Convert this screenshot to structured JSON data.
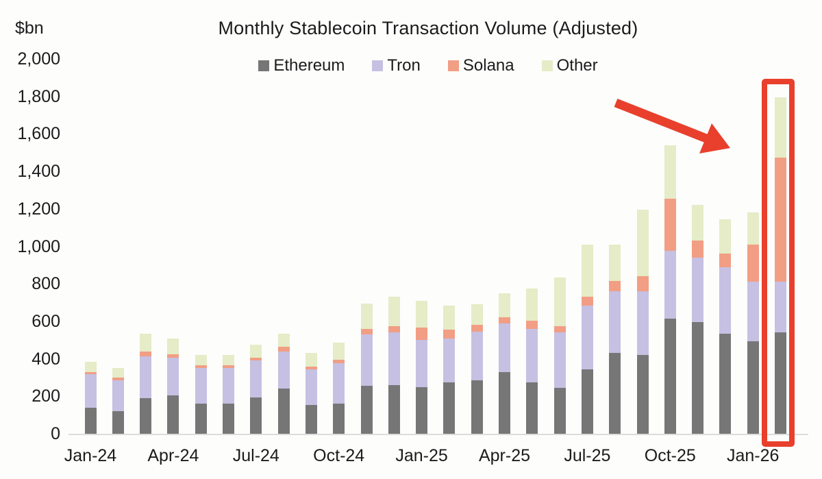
{
  "chart_data": {
    "type": "bar",
    "stacked": true,
    "title": "Monthly Stablecoin Transaction Volume (Adjusted)",
    "ylabel": "$bn",
    "ylim": [
      0,
      2000
    ],
    "ytick_interval": 200,
    "y_ticks": [
      "0",
      "200",
      "400",
      "600",
      "800",
      "1,000",
      "1,200",
      "1,400",
      "1,600",
      "1,800",
      "2,000"
    ],
    "grid": false,
    "legend_position": "top-center",
    "categories": [
      "Jan-24",
      "Feb-24",
      "Mar-24",
      "Apr-24",
      "May-24",
      "Jun-24",
      "Jul-24",
      "Aug-24",
      "Sep-24",
      "Oct-24",
      "Nov-24",
      "Dec-24",
      "Jan-25",
      "Feb-25",
      "Mar-25",
      "Apr-25",
      "May-25",
      "Jun-25",
      "Jul-25",
      "Aug-25",
      "Sep-25",
      "Oct-25",
      "Nov-25",
      "Dec-25",
      "Jan-26",
      "Feb-26"
    ],
    "x_ticks": [
      {
        "label": "Jan-24",
        "index": 0
      },
      {
        "label": "Apr-24",
        "index": 3
      },
      {
        "label": "Jul-24",
        "index": 6
      },
      {
        "label": "Oct-24",
        "index": 9
      },
      {
        "label": "Jan-25",
        "index": 12
      },
      {
        "label": "Apr-25",
        "index": 15
      },
      {
        "label": "Jul-25",
        "index": 18
      },
      {
        "label": "Oct-25",
        "index": 21
      },
      {
        "label": "Jan-26",
        "index": 24
      }
    ],
    "series": [
      {
        "name": "Ethereum",
        "color": "#767676",
        "values": [
          140,
          120,
          190,
          205,
          160,
          160,
          195,
          240,
          155,
          160,
          255,
          260,
          250,
          275,
          285,
          330,
          275,
          245,
          345,
          430,
          420,
          615,
          595,
          535,
          495,
          540
        ]
      },
      {
        "name": "Tron",
        "color": "#c6c0e2",
        "values": [
          180,
          165,
          225,
          200,
          190,
          190,
          195,
          200,
          190,
          215,
          275,
          280,
          250,
          235,
          260,
          260,
          285,
          295,
          340,
          330,
          340,
          360,
          345,
          355,
          315,
          270
        ]
      },
      {
        "name": "Solana",
        "color": "#f19e84",
        "values": [
          10,
          15,
          25,
          20,
          15,
          15,
          15,
          25,
          15,
          20,
          30,
          35,
          65,
          45,
          35,
          30,
          45,
          35,
          45,
          55,
          80,
          280,
          90,
          70,
          200,
          665
        ]
      },
      {
        "name": "Other",
        "color": "#e5ecc7",
        "values": [
          55,
          50,
          95,
          85,
          55,
          55,
          70,
          70,
          70,
          90,
          135,
          155,
          145,
          130,
          110,
          130,
          170,
          260,
          280,
          195,
          355,
          285,
          190,
          185,
          170,
          320
        ]
      }
    ],
    "annotations": {
      "arrow_color": "#e8402c",
      "highlight_box_color": "#e8402c",
      "highlighted_category": "Feb-26"
    }
  }
}
